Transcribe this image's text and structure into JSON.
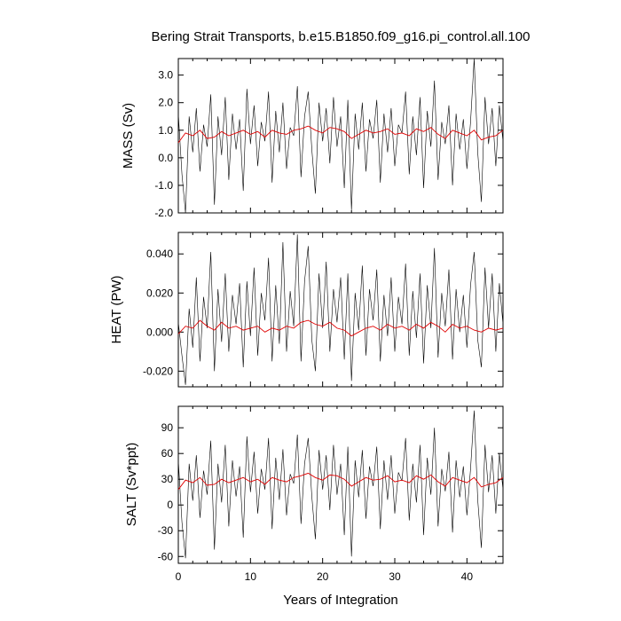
{
  "chart_data": [
    {
      "type": "line",
      "title": "Bering Strait Transports, b.e15.B1850.f09_g16.pi_control.all.100",
      "ylabel": "MASS (Sv)",
      "xlabel": "",
      "xlim": [
        0,
        45
      ],
      "ylim": [
        -2.0,
        3.6
      ],
      "x_ticks": [
        0,
        10,
        20,
        30,
        40
      ],
      "x_tick_labels": [
        "",
        "",
        "",
        "",
        ""
      ],
      "y_ticks": [
        -2.0,
        -1.0,
        0.0,
        1.0,
        2.0,
        3.0
      ],
      "y_tick_labels": [
        "-2.0",
        "-1.0",
        "0.0",
        "1.0",
        "2.0",
        "3.0"
      ],
      "series": [
        {
          "role": "monthly",
          "color": "#000000",
          "x": [
            0.0,
            0.5,
            1.0,
            1.5,
            2.0,
            2.5,
            3.0,
            3.5,
            4.0,
            4.5,
            5.0,
            5.5,
            6.0,
            6.5,
            7.0,
            7.5,
            8.0,
            8.5,
            9.0,
            9.5,
            10.0,
            10.5,
            11.0,
            11.5,
            12.0,
            12.5,
            13.0,
            13.5,
            14.0,
            14.5,
            15.0,
            15.5,
            16.0,
            16.5,
            17.0,
            17.5,
            18.0,
            18.5,
            19.0,
            19.5,
            20.0,
            20.5,
            21.0,
            21.5,
            22.0,
            22.5,
            23.0,
            23.5,
            24.0,
            24.5,
            25.0,
            25.5,
            26.0,
            26.5,
            27.0,
            27.5,
            28.0,
            28.5,
            29.0,
            29.5,
            30.0,
            30.5,
            31.0,
            31.5,
            32.0,
            32.5,
            33.0,
            33.5,
            34.0,
            34.5,
            35.0,
            35.5,
            36.0,
            36.5,
            37.0,
            37.5,
            38.0,
            38.5,
            39.0,
            39.5,
            40.0,
            40.5,
            41.0,
            41.5,
            42.0,
            42.5,
            43.0,
            43.5,
            44.0,
            44.5,
            45.0
          ],
          "values": [
            1.6,
            -0.6,
            -2.0,
            1.5,
            0.2,
            1.8,
            -0.5,
            1.2,
            0.4,
            2.3,
            -1.7,
            1.5,
            0.1,
            2.2,
            -0.8,
            1.6,
            0.3,
            1.4,
            -1.2,
            2.5,
            0.5,
            1.9,
            -0.3,
            1.3,
            0.6,
            2.4,
            -0.9,
            1.7,
            0.2,
            2.0,
            -0.4,
            1.1,
            0.8,
            2.6,
            -0.7,
            1.5,
            2.4,
            0.3,
            -1.3,
            2.0,
            0.6,
            1.8,
            -0.2,
            2.2,
            0.4,
            1.5,
            -1.1,
            2.1,
            -1.9,
            1.6,
            0.3,
            2.0,
            -0.5,
            1.4,
            0.7,
            2.1,
            -0.9,
            1.6,
            0.2,
            1.8,
            -0.3,
            1.2,
            0.9,
            2.4,
            -0.6,
            1.5,
            0.1,
            2.2,
            -1.1,
            1.7,
            0.4,
            2.8,
            -0.8,
            1.3,
            0.5,
            1.9,
            -1.0,
            1.6,
            0.3,
            1.4,
            -0.4,
            1.3,
            3.6,
            0.2,
            -1.6,
            2.2,
            0.5,
            1.8,
            -0.3,
            1.9,
            0.6
          ]
        },
        {
          "role": "running-mean",
          "color": "#e00000",
          "x": [
            0,
            1,
            2,
            3,
            4,
            5,
            6,
            7,
            8,
            9,
            10,
            11,
            12,
            13,
            14,
            15,
            16,
            17,
            18,
            19,
            20,
            21,
            22,
            23,
            24,
            25,
            26,
            27,
            28,
            29,
            30,
            31,
            32,
            33,
            34,
            35,
            36,
            37,
            38,
            39,
            40,
            41,
            42,
            43,
            44,
            45
          ],
          "values": [
            0.55,
            0.9,
            0.8,
            1.0,
            0.7,
            0.75,
            0.95,
            0.8,
            0.9,
            1.0,
            0.85,
            0.95,
            0.75,
            1.0,
            0.9,
            0.85,
            1.0,
            1.05,
            1.15,
            1.0,
            0.9,
            1.1,
            1.05,
            0.95,
            0.7,
            0.85,
            1.0,
            0.9,
            0.95,
            1.05,
            0.85,
            0.9,
            0.8,
            1.05,
            0.95,
            1.1,
            0.85,
            0.7,
            1.0,
            0.9,
            0.8,
            1.0,
            0.65,
            0.75,
            0.8,
            1.0
          ]
        }
      ]
    },
    {
      "type": "line",
      "ylabel": "HEAT (PW)",
      "xlabel": "",
      "xlim": [
        0,
        45
      ],
      "ylim": [
        -0.028,
        0.051
      ],
      "x_ticks": [
        0,
        10,
        20,
        30,
        40
      ],
      "x_tick_labels": [
        "",
        "",
        "",
        "",
        ""
      ],
      "y_ticks": [
        -0.02,
        0.0,
        0.02,
        0.04
      ],
      "y_tick_labels": [
        "-0.020",
        "0.000",
        "0.020",
        "0.040"
      ],
      "series": [
        {
          "role": "monthly",
          "color": "#000000",
          "x": [
            0.0,
            0.5,
            1.0,
            1.5,
            2.0,
            2.5,
            3.0,
            3.5,
            4.0,
            4.5,
            5.0,
            5.5,
            6.0,
            6.5,
            7.0,
            7.5,
            8.0,
            8.5,
            9.0,
            9.5,
            10.0,
            10.5,
            11.0,
            11.5,
            12.0,
            12.5,
            13.0,
            13.5,
            14.0,
            14.5,
            15.0,
            15.5,
            16.0,
            16.5,
            17.0,
            17.5,
            18.0,
            18.5,
            19.0,
            19.5,
            20.0,
            20.5,
            21.0,
            21.5,
            22.0,
            22.5,
            23.0,
            23.5,
            24.0,
            24.5,
            25.0,
            25.5,
            26.0,
            26.5,
            27.0,
            27.5,
            28.0,
            28.5,
            29.0,
            29.5,
            30.0,
            30.5,
            31.0,
            31.5,
            32.0,
            32.5,
            33.0,
            33.5,
            34.0,
            34.5,
            35.0,
            35.5,
            36.0,
            36.5,
            37.0,
            37.5,
            38.0,
            38.5,
            39.0,
            39.5,
            40.0,
            40.5,
            41.0,
            41.5,
            42.0,
            42.5,
            43.0,
            43.5,
            44.0,
            44.5,
            45.0
          ],
          "values": [
            0.005,
            -0.012,
            -0.027,
            0.012,
            -0.008,
            0.028,
            -0.015,
            0.018,
            0.002,
            0.041,
            -0.02,
            0.022,
            -0.005,
            0.03,
            -0.01,
            0.019,
            0.004,
            0.025,
            -0.018,
            0.026,
            -0.002,
            0.033,
            -0.012,
            0.02,
            0.006,
            0.038,
            -0.015,
            0.024,
            -0.006,
            0.046,
            -0.01,
            0.021,
            0.003,
            0.05,
            -0.015,
            0.026,
            0.044,
            -0.004,
            -0.02,
            0.03,
            0.002,
            0.036,
            -0.01,
            0.022,
            0.005,
            0.028,
            -0.014,
            0.03,
            -0.025,
            0.02,
            0.001,
            0.034,
            -0.012,
            0.022,
            0.006,
            0.032,
            -0.015,
            0.019,
            -0.002,
            0.028,
            -0.01,
            0.018,
            0.004,
            0.035,
            -0.012,
            0.021,
            -0.003,
            0.03,
            -0.016,
            0.024,
            0.002,
            0.043,
            -0.013,
            0.02,
            0.003,
            0.032,
            -0.014,
            0.022,
            0.0,
            0.019,
            -0.008,
            0.024,
            0.041,
            -0.004,
            -0.018,
            0.033,
            0.002,
            0.03,
            -0.01,
            0.025,
            0.004
          ]
        },
        {
          "role": "running-mean",
          "color": "#e00000",
          "x": [
            0,
            1,
            2,
            3,
            4,
            5,
            6,
            7,
            8,
            9,
            10,
            11,
            12,
            13,
            14,
            15,
            16,
            17,
            18,
            19,
            20,
            21,
            22,
            23,
            24,
            25,
            26,
            27,
            28,
            29,
            30,
            31,
            32,
            33,
            34,
            35,
            36,
            37,
            38,
            39,
            40,
            41,
            42,
            43,
            44,
            45
          ],
          "values": [
            -0.001,
            0.003,
            0.002,
            0.006,
            0.003,
            0.001,
            0.005,
            0.002,
            0.003,
            0.001,
            0.002,
            0.003,
            0.0,
            0.002,
            0.001,
            0.003,
            0.002,
            0.005,
            0.006,
            0.004,
            0.003,
            0.005,
            0.002,
            0.001,
            -0.002,
            0.0,
            0.002,
            0.003,
            0.001,
            0.004,
            0.002,
            0.003,
            0.001,
            0.004,
            0.002,
            0.005,
            0.003,
            0.0,
            0.004,
            0.002,
            0.003,
            0.001,
            0.0,
            0.002,
            0.001,
            0.002
          ]
        }
      ]
    },
    {
      "type": "line",
      "ylabel": "SALT (Sv*ppt)",
      "xlabel": "Years of Integration",
      "xlim": [
        0,
        45
      ],
      "ylim": [
        -68,
        115
      ],
      "x_ticks": [
        0,
        10,
        20,
        30,
        40
      ],
      "x_tick_labels": [
        "0",
        "10",
        "20",
        "30",
        "40"
      ],
      "y_ticks": [
        -60,
        -30,
        0,
        30,
        60,
        90
      ],
      "y_tick_labels": [
        "-60",
        "-30",
        "0",
        "30",
        "60",
        "90"
      ],
      "series": [
        {
          "role": "monthly",
          "color": "#000000",
          "x": [
            0.0,
            0.5,
            1.0,
            1.5,
            2.0,
            2.5,
            3.0,
            3.5,
            4.0,
            4.5,
            5.0,
            5.5,
            6.0,
            6.5,
            7.0,
            7.5,
            8.0,
            8.5,
            9.0,
            9.5,
            10.0,
            10.5,
            11.0,
            11.5,
            12.0,
            12.5,
            13.0,
            13.5,
            14.0,
            14.5,
            15.0,
            15.5,
            16.0,
            16.5,
            17.0,
            17.5,
            18.0,
            18.5,
            19.0,
            19.5,
            20.0,
            20.5,
            21.0,
            21.5,
            22.0,
            22.5,
            23.0,
            23.5,
            24.0,
            24.5,
            25.0,
            25.5,
            26.0,
            26.5,
            27.0,
            27.5,
            28.0,
            28.5,
            29.0,
            29.5,
            30.0,
            30.5,
            31.0,
            31.5,
            32.0,
            32.5,
            33.0,
            33.5,
            34.0,
            34.5,
            35.0,
            35.5,
            36.0,
            36.5,
            37.0,
            37.5,
            38.0,
            38.5,
            39.0,
            39.5,
            40.0,
            40.5,
            41.0,
            41.5,
            42.0,
            42.5,
            43.0,
            43.5,
            44.0,
            44.5,
            45.0
          ],
          "values": [
            52,
            -20,
            -62,
            48,
            5,
            58,
            -15,
            40,
            12,
            75,
            -52,
            48,
            3,
            70,
            -25,
            52,
            10,
            45,
            -38,
            80,
            15,
            62,
            -10,
            42,
            18,
            78,
            -28,
            55,
            6,
            65,
            -12,
            36,
            25,
            82,
            -22,
            48,
            78,
            10,
            -40,
            64,
            18,
            58,
            -6,
            70,
            12,
            48,
            -35,
            68,
            -60,
            52,
            9,
            64,
            -16,
            45,
            22,
            68,
            -28,
            52,
            6,
            58,
            -10,
            38,
            28,
            78,
            -18,
            48,
            3,
            70,
            -35,
            55,
            12,
            90,
            -25,
            42,
            16,
            62,
            -32,
            52,
            9,
            45,
            -12,
            42,
            110,
            6,
            -50,
            70,
            15,
            58,
            -10,
            60,
            18
          ]
        },
        {
          "role": "running-mean",
          "color": "#e00000",
          "x": [
            0,
            1,
            2,
            3,
            4,
            5,
            6,
            7,
            8,
            9,
            10,
            11,
            12,
            13,
            14,
            15,
            16,
            17,
            18,
            19,
            20,
            21,
            22,
            23,
            24,
            25,
            26,
            27,
            28,
            29,
            30,
            31,
            32,
            33,
            34,
            35,
            36,
            37,
            38,
            39,
            40,
            41,
            42,
            43,
            44,
            45
          ],
          "values": [
            18,
            29,
            26,
            32,
            23,
            24,
            30,
            26,
            29,
            32,
            27,
            30,
            24,
            32,
            29,
            27,
            32,
            34,
            37,
            32,
            29,
            35,
            34,
            30,
            22,
            27,
            32,
            29,
            30,
            34,
            27,
            29,
            26,
            34,
            30,
            35,
            27,
            22,
            32,
            29,
            26,
            32,
            21,
            24,
            26,
            32
          ]
        }
      ]
    }
  ]
}
